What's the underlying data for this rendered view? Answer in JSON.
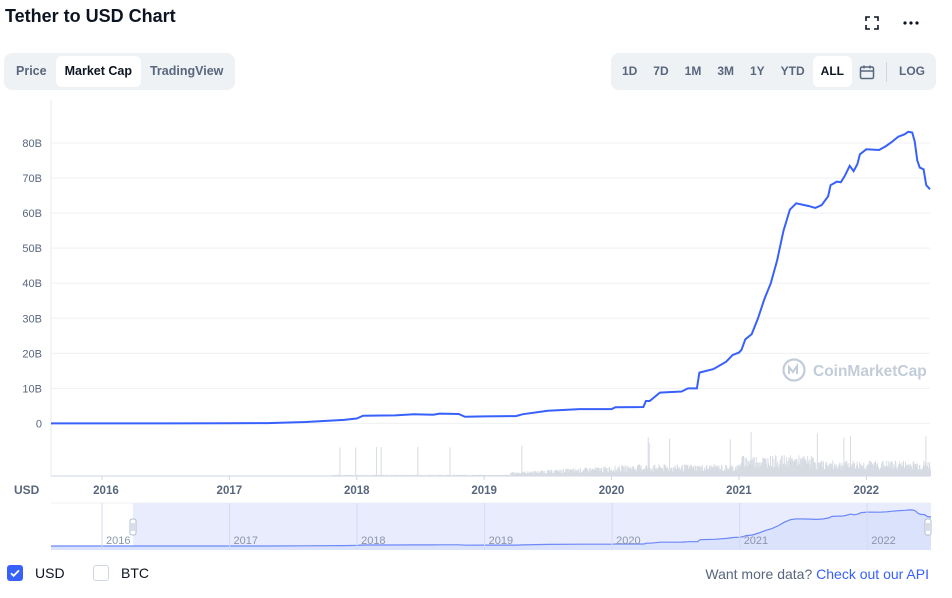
{
  "header": {
    "title": "Tether to USD Chart"
  },
  "view_tabs": [
    {
      "label": "Price",
      "active": false
    },
    {
      "label": "Market Cap",
      "active": true
    },
    {
      "label": "TradingView",
      "active": false
    }
  ],
  "range_tabs": [
    {
      "label": "1D",
      "active": false
    },
    {
      "label": "7D",
      "active": false
    },
    {
      "label": "1M",
      "active": false
    },
    {
      "label": "3M",
      "active": false
    },
    {
      "label": "1Y",
      "active": false
    },
    {
      "label": "YTD",
      "active": false
    },
    {
      "label": "ALL",
      "active": true
    }
  ],
  "log_label": "LOG",
  "icons": {
    "fullscreen": "fullscreen-icon",
    "more": "more-horizontal-icon",
    "calendar": "calendar-icon"
  },
  "watermark": "CoinMarketCap",
  "currency_label": "USD",
  "checkboxes": [
    {
      "label": "USD",
      "checked": true
    },
    {
      "label": "BTC",
      "checked": false
    }
  ],
  "footer": {
    "prompt": "Want more data?",
    "link": "Check out our API"
  },
  "colors": {
    "line": "#3861fb",
    "volume": "#d6dbe3",
    "accent": "#3861fb",
    "navigator_fill": "#e8ecfd"
  },
  "chart_data": {
    "type": "line",
    "title": "Tether to USD Chart",
    "ylabel": "",
    "xlabel": "",
    "y_unit": "USD",
    "ylim": [
      -15,
      88
    ],
    "y_ticks": [
      0,
      10,
      20,
      30,
      40,
      50,
      60,
      70,
      80
    ],
    "y_tick_labels": [
      "0",
      "10B",
      "20B",
      "30B",
      "40B",
      "50B",
      "60B",
      "70B",
      "80B"
    ],
    "x_ticks": [
      2016,
      2017,
      2018,
      2019,
      2020,
      2021,
      2022
    ],
    "navigator_x_ticks": [
      2016,
      2017,
      2018,
      2019,
      2020,
      2021,
      2022
    ],
    "grid": true,
    "series": [
      {
        "points": [
          [
            2015.6,
            0.0
          ],
          [
            2016.0,
            0.0
          ],
          [
            2016.5,
            0.01
          ],
          [
            2017.0,
            0.06
          ],
          [
            2017.3,
            0.1
          ],
          [
            2017.6,
            0.4
          ],
          [
            2017.9,
            1.0
          ],
          [
            2018.0,
            1.4
          ],
          [
            2018.05,
            2.2
          ],
          [
            2018.3,
            2.3
          ],
          [
            2018.45,
            2.6
          ],
          [
            2018.6,
            2.5
          ],
          [
            2018.65,
            2.8
          ],
          [
            2018.8,
            2.7
          ],
          [
            2018.85,
            1.9
          ],
          [
            2019.0,
            2.0
          ],
          [
            2019.25,
            2.1
          ],
          [
            2019.3,
            2.6
          ],
          [
            2019.5,
            3.6
          ],
          [
            2019.75,
            4.1
          ],
          [
            2020.0,
            4.1
          ],
          [
            2020.03,
            4.6
          ],
          [
            2020.25,
            4.7
          ],
          [
            2020.27,
            6.4
          ],
          [
            2020.3,
            6.4
          ],
          [
            2020.38,
            8.8
          ],
          [
            2020.55,
            9.1
          ],
          [
            2020.6,
            10.0
          ],
          [
            2020.67,
            10.0
          ],
          [
            2020.69,
            14.5
          ],
          [
            2020.8,
            15.5
          ],
          [
            2020.9,
            17.6
          ],
          [
            2020.95,
            19.5
          ],
          [
            2021.0,
            20.2
          ],
          [
            2021.02,
            21.0
          ],
          [
            2021.05,
            24.0
          ],
          [
            2021.1,
            25.5
          ],
          [
            2021.15,
            30.0
          ],
          [
            2021.2,
            35.5
          ],
          [
            2021.25,
            40.0
          ],
          [
            2021.3,
            46.5
          ],
          [
            2021.35,
            55.0
          ],
          [
            2021.4,
            61.0
          ],
          [
            2021.45,
            62.8
          ],
          [
            2021.55,
            62.0
          ],
          [
            2021.6,
            61.5
          ],
          [
            2021.65,
            62.3
          ],
          [
            2021.7,
            64.8
          ],
          [
            2021.72,
            68.0
          ],
          [
            2021.77,
            69.0
          ],
          [
            2021.8,
            68.8
          ],
          [
            2021.83,
            70.5
          ],
          [
            2021.87,
            73.5
          ],
          [
            2021.9,
            72.0
          ],
          [
            2021.93,
            74.0
          ],
          [
            2021.95,
            76.8
          ],
          [
            2022.0,
            78.2
          ],
          [
            2022.1,
            78.0
          ],
          [
            2022.15,
            79.0
          ],
          [
            2022.2,
            80.3
          ],
          [
            2022.25,
            81.8
          ],
          [
            2022.3,
            82.5
          ],
          [
            2022.33,
            83.2
          ],
          [
            2022.36,
            83.0
          ],
          [
            2022.38,
            80.5
          ],
          [
            2022.4,
            75.0
          ],
          [
            2022.42,
            73.0
          ],
          [
            2022.45,
            72.5
          ],
          [
            2022.47,
            68.0
          ],
          [
            2022.5,
            66.8
          ]
        ]
      }
    ],
    "volume": {
      "shown": true,
      "units": "unlabeled"
    }
  }
}
